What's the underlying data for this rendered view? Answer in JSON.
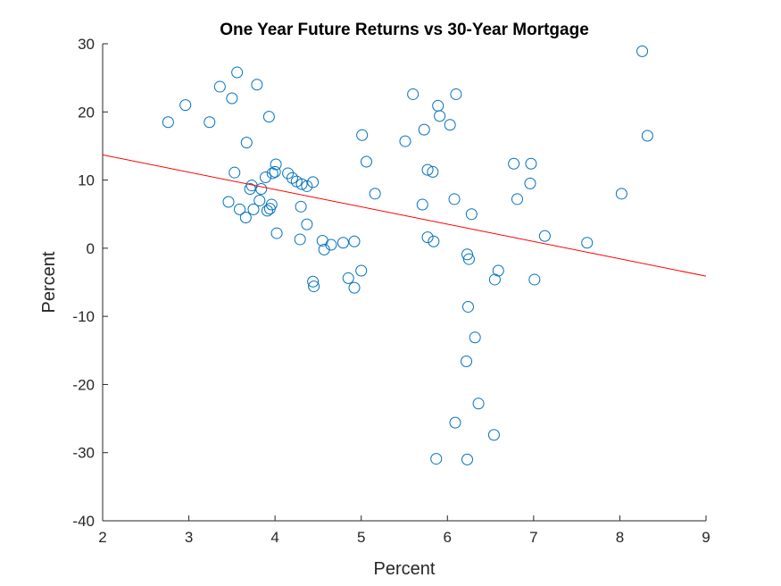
{
  "chart_data": {
    "type": "scatter",
    "title": "One Year Future Returns vs 30-Year Mortgage",
    "xlabel": "Percent",
    "ylabel": "Percent",
    "xlim": [
      2,
      9
    ],
    "ylim": [
      -40,
      30
    ],
    "xticks": [
      2,
      3,
      4,
      5,
      6,
      7,
      8,
      9
    ],
    "yticks": [
      -40,
      -30,
      -20,
      -10,
      0,
      10,
      20,
      30
    ],
    "grid": false,
    "marker_color": "#0072bd",
    "fit_color": "#ff0000",
    "fit_line": {
      "x": [
        2,
        9
      ],
      "y": [
        13.7,
        -4.1
      ]
    },
    "points": [
      [
        2.76,
        18.5
      ],
      [
        2.96,
        21.0
      ],
      [
        3.24,
        18.5
      ],
      [
        3.36,
        23.7
      ],
      [
        3.5,
        22.0
      ],
      [
        3.56,
        25.8
      ],
      [
        3.79,
        24.0
      ],
      [
        3.93,
        19.3
      ],
      [
        3.67,
        15.5
      ],
      [
        3.53,
        11.1
      ],
      [
        3.46,
        6.8
      ],
      [
        3.59,
        5.7
      ],
      [
        3.66,
        4.5
      ],
      [
        3.71,
        8.7
      ],
      [
        3.73,
        9.2
      ],
      [
        3.75,
        5.7
      ],
      [
        3.82,
        7.0
      ],
      [
        3.84,
        8.7
      ],
      [
        3.89,
        10.4
      ],
      [
        3.91,
        5.5
      ],
      [
        3.94,
        5.8
      ],
      [
        3.96,
        6.4
      ],
      [
        3.97,
        11.0
      ],
      [
        4.0,
        11.2
      ],
      [
        4.01,
        12.3
      ],
      [
        4.02,
        2.2
      ],
      [
        4.15,
        11.0
      ],
      [
        4.2,
        10.3
      ],
      [
        4.25,
        9.8
      ],
      [
        4.31,
        9.4
      ],
      [
        4.37,
        9.1
      ],
      [
        4.44,
        9.7
      ],
      [
        4.3,
        6.1
      ],
      [
        4.29,
        1.3
      ],
      [
        4.37,
        3.5
      ],
      [
        4.44,
        -4.9
      ],
      [
        4.45,
        -5.6
      ],
      [
        4.55,
        1.1
      ],
      [
        4.57,
        -0.2
      ],
      [
        4.65,
        0.5
      ],
      [
        4.79,
        0.8
      ],
      [
        4.85,
        -4.4
      ],
      [
        4.92,
        1.0
      ],
      [
        4.92,
        -5.8
      ],
      [
        5.0,
        -3.3
      ],
      [
        5.01,
        16.6
      ],
      [
        5.06,
        12.7
      ],
      [
        5.16,
        8.0
      ],
      [
        5.51,
        15.7
      ],
      [
        5.6,
        22.6
      ],
      [
        5.71,
        6.4
      ],
      [
        5.73,
        17.4
      ],
      [
        5.77,
        11.5
      ],
      [
        5.77,
        1.6
      ],
      [
        5.83,
        11.2
      ],
      [
        5.84,
        1.0
      ],
      [
        5.87,
        -30.9
      ],
      [
        5.89,
        20.9
      ],
      [
        5.91,
        19.4
      ],
      [
        6.03,
        18.1
      ],
      [
        6.08,
        7.2
      ],
      [
        6.09,
        -25.6
      ],
      [
        6.1,
        22.6
      ],
      [
        6.22,
        -16.6
      ],
      [
        6.23,
        -31.0
      ],
      [
        6.23,
        -0.9
      ],
      [
        6.24,
        -8.6
      ],
      [
        6.25,
        -1.6
      ],
      [
        6.28,
        5.0
      ],
      [
        6.32,
        -13.1
      ],
      [
        6.36,
        -22.8
      ],
      [
        6.54,
        -27.4
      ],
      [
        6.55,
        -4.6
      ],
      [
        6.59,
        -3.3
      ],
      [
        6.77,
        12.4
      ],
      [
        6.81,
        7.2
      ],
      [
        6.96,
        9.5
      ],
      [
        6.97,
        12.4
      ],
      [
        7.01,
        -4.6
      ],
      [
        7.13,
        1.8
      ],
      [
        7.62,
        0.8
      ],
      [
        8.02,
        8.0
      ],
      [
        8.26,
        28.9
      ],
      [
        8.32,
        16.5
      ]
    ]
  }
}
